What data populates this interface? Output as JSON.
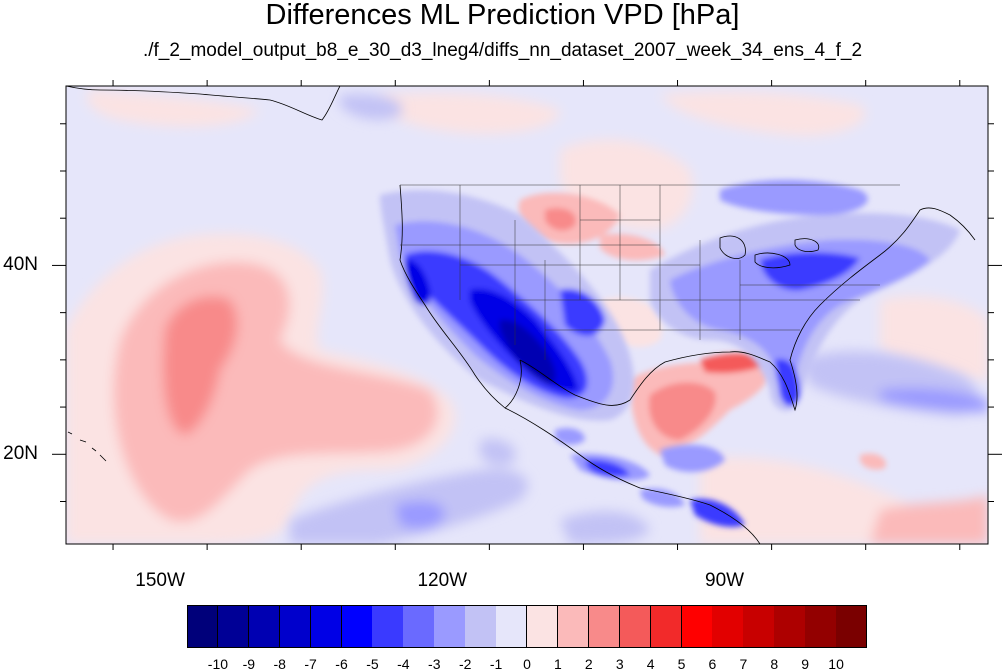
{
  "title": "Differences ML Prediction VPD [hPa]",
  "subtitle": "./f_2_model_output_b8_e_30_d3_lneg4/diffs_nn_dataset_2007_week_34_ens_4_f_2",
  "map": {
    "projection": "cylindrical-equidistant",
    "lon_range": [
      -160,
      -62
    ],
    "lat_range": [
      10.5,
      59
    ],
    "lat_labels": [
      {
        "value": 40,
        "text": "40N"
      },
      {
        "value": 20,
        "text": "20N"
      }
    ],
    "lon_labels": [
      {
        "value": -150,
        "text": "150W"
      },
      {
        "value": -120,
        "text": "120W"
      },
      {
        "value": -90,
        "text": "90W"
      }
    ],
    "colors": {
      "ocean_background": "#e6e6fa",
      "coast": "#000000"
    }
  },
  "colorbar": {
    "labels": [
      "-10",
      "-9",
      "-8",
      "-7",
      "-6",
      "-5",
      "-4",
      "-3",
      "-2",
      "-1",
      "0",
      "1",
      "2",
      "3",
      "4",
      "5",
      "6",
      "7",
      "8",
      "9",
      "10"
    ],
    "colors": [
      "#00007a",
      "#000096",
      "#0000b2",
      "#0000cc",
      "#0000e6",
      "#0000ff",
      "#3a3aff",
      "#6a6aff",
      "#9a9aff",
      "#c2c2f5",
      "#e6e6fa",
      "#fbe3e3",
      "#fbbaba",
      "#f88a8a",
      "#f45a5a",
      "#f22a2a",
      "#ff0000",
      "#e20000",
      "#c80000",
      "#ad0000",
      "#930000",
      "#7a0000"
    ]
  }
}
